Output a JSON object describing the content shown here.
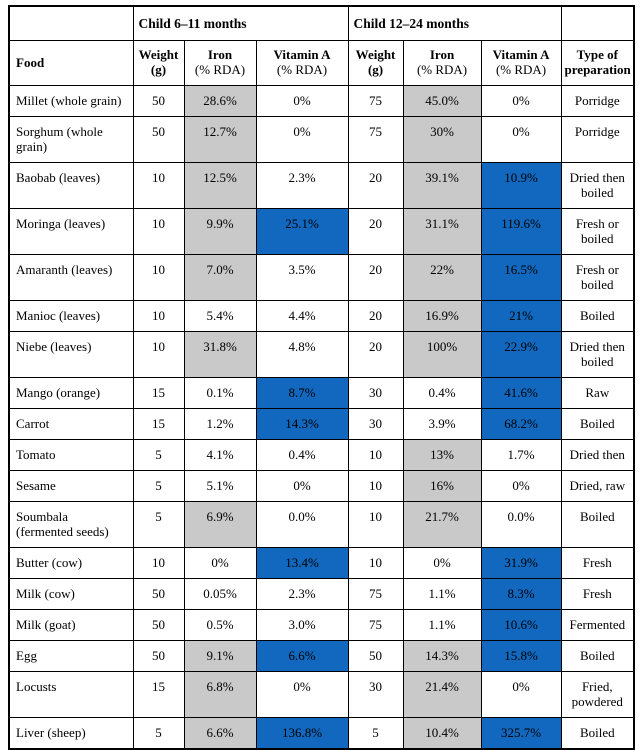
{
  "colors": {
    "highlight_gray": "#C9C9C9",
    "highlight_blue": "#1168BE",
    "border": "#000000",
    "text": "#000000"
  },
  "table": {
    "group_headers": {
      "blank_left": "",
      "child_6_11": "Child 6–11 months",
      "child_12_24": "Child 12–24 months",
      "blank_right": ""
    },
    "columns": [
      {
        "l1": "Food",
        "l2": ""
      },
      {
        "l1": "Weight",
        "l2": "(g)"
      },
      {
        "l1": "Iron",
        "l2": "(% RDA)"
      },
      {
        "l1": "Vitamin A",
        "l2": "(% RDA)"
      },
      {
        "l1": "Weight",
        "l2": "(g)"
      },
      {
        "l1": "Iron",
        "l2": "(% RDA)"
      },
      {
        "l1": "Vitamin A",
        "l2": "(% RDA)"
      },
      {
        "l1": "Type of",
        "l2": "preparation"
      }
    ],
    "rows": [
      {
        "food": "Millet (whole grain)",
        "cells": [
          {
            "text": "50",
            "bg": "none"
          },
          {
            "text": "28.6%",
            "bg": "gray"
          },
          {
            "text": "0%",
            "bg": "none"
          },
          {
            "text": "75",
            "bg": "none"
          },
          {
            "text": "45.0%",
            "bg": "gray"
          },
          {
            "text": "0%",
            "bg": "none"
          },
          {
            "text": "Porridge",
            "bg": "none"
          }
        ]
      },
      {
        "food": "Sorghum (whole grain)",
        "cells": [
          {
            "text": "50",
            "bg": "none"
          },
          {
            "text": "12.7%",
            "bg": "gray"
          },
          {
            "text": "0%",
            "bg": "none"
          },
          {
            "text": "75",
            "bg": "none"
          },
          {
            "text": "30%",
            "bg": "gray"
          },
          {
            "text": "0%",
            "bg": "none"
          },
          {
            "text": "Porridge",
            "bg": "none"
          }
        ]
      },
      {
        "food": "Baobab (leaves)",
        "cells": [
          {
            "text": "10",
            "bg": "none"
          },
          {
            "text": "12.5%",
            "bg": "gray"
          },
          {
            "text": "2.3%",
            "bg": "none"
          },
          {
            "text": "20",
            "bg": "none"
          },
          {
            "text": "39.1%",
            "bg": "gray"
          },
          {
            "text": "10.9%",
            "bg": "blue"
          },
          {
            "text": "Dried then boiled",
            "bg": "none"
          }
        ]
      },
      {
        "food": "Moringa (leaves)",
        "cells": [
          {
            "text": "10",
            "bg": "none"
          },
          {
            "text": "9.9%",
            "bg": "gray"
          },
          {
            "text": "25.1%",
            "bg": "blue"
          },
          {
            "text": "20",
            "bg": "none"
          },
          {
            "text": "31.1%",
            "bg": "gray"
          },
          {
            "text": "119.6%",
            "bg": "blue"
          },
          {
            "text": "Fresh or boiled",
            "bg": "none"
          }
        ]
      },
      {
        "food": "Amaranth (leaves)",
        "cells": [
          {
            "text": "10",
            "bg": "none"
          },
          {
            "text": "7.0%",
            "bg": "gray"
          },
          {
            "text": "3.5%",
            "bg": "none"
          },
          {
            "text": "20",
            "bg": "none"
          },
          {
            "text": "22%",
            "bg": "gray"
          },
          {
            "text": "16.5%",
            "bg": "blue"
          },
          {
            "text": "Fresh or boiled",
            "bg": "none"
          }
        ]
      },
      {
        "food": "Manioc (leaves)",
        "cells": [
          {
            "text": "10",
            "bg": "none"
          },
          {
            "text": "5.4%",
            "bg": "none"
          },
          {
            "text": "4.4%",
            "bg": "none"
          },
          {
            "text": "20",
            "bg": "none"
          },
          {
            "text": "16.9%",
            "bg": "gray"
          },
          {
            "text": "21%",
            "bg": "blue"
          },
          {
            "text": "Boiled",
            "bg": "none"
          }
        ]
      },
      {
        "food": "Niebe (leaves)",
        "cells": [
          {
            "text": "10",
            "bg": "none"
          },
          {
            "text": "31.8%",
            "bg": "gray"
          },
          {
            "text": "4.8%",
            "bg": "none"
          },
          {
            "text": "20",
            "bg": "none"
          },
          {
            "text": "100%",
            "bg": "gray"
          },
          {
            "text": "22.9%",
            "bg": "blue"
          },
          {
            "text": "Dried then boiled",
            "bg": "none"
          }
        ]
      },
      {
        "food": "Mango (orange)",
        "cells": [
          {
            "text": "15",
            "bg": "none"
          },
          {
            "text": "0.1%",
            "bg": "none"
          },
          {
            "text": "8.7%",
            "bg": "blue"
          },
          {
            "text": "30",
            "bg": "none"
          },
          {
            "text": "0.4%",
            "bg": "none"
          },
          {
            "text": "41.6%",
            "bg": "blue"
          },
          {
            "text": "Raw",
            "bg": "none"
          }
        ]
      },
      {
        "food": "Carrot",
        "cells": [
          {
            "text": "15",
            "bg": "none"
          },
          {
            "text": "1.2%",
            "bg": "none"
          },
          {
            "text": "14.3%",
            "bg": "blue"
          },
          {
            "text": "30",
            "bg": "none"
          },
          {
            "text": "3.9%",
            "bg": "none"
          },
          {
            "text": "68.2%",
            "bg": "blue"
          },
          {
            "text": "Boiled",
            "bg": "none"
          }
        ]
      },
      {
        "food": "Tomato",
        "cells": [
          {
            "text": "5",
            "bg": "none"
          },
          {
            "text": "4.1%",
            "bg": "none"
          },
          {
            "text": "0.4%",
            "bg": "none"
          },
          {
            "text": "10",
            "bg": "none"
          },
          {
            "text": "13%",
            "bg": "gray"
          },
          {
            "text": "1.7%",
            "bg": "none"
          },
          {
            "text": "Dried then",
            "bg": "none"
          }
        ]
      },
      {
        "food": "Sesame",
        "cells": [
          {
            "text": "5",
            "bg": "none"
          },
          {
            "text": "5.1%",
            "bg": "none"
          },
          {
            "text": "0%",
            "bg": "none"
          },
          {
            "text": "10",
            "bg": "none"
          },
          {
            "text": "16%",
            "bg": "gray"
          },
          {
            "text": "0%",
            "bg": "none"
          },
          {
            "text": "Dried, raw",
            "bg": "none"
          }
        ]
      },
      {
        "food": "Soumbala (fermented seeds)",
        "cells": [
          {
            "text": "5",
            "bg": "none"
          },
          {
            "text": "6.9%",
            "bg": "gray"
          },
          {
            "text": "0.0%",
            "bg": "none"
          },
          {
            "text": "10",
            "bg": "none"
          },
          {
            "text": "21.7%",
            "bg": "gray"
          },
          {
            "text": "0.0%",
            "bg": "none"
          },
          {
            "text": "Boiled",
            "bg": "none"
          }
        ]
      },
      {
        "food": "Butter (cow)",
        "cells": [
          {
            "text": "10",
            "bg": "none"
          },
          {
            "text": "0%",
            "bg": "none"
          },
          {
            "text": "13.4%",
            "bg": "blue"
          },
          {
            "text": "10",
            "bg": "none"
          },
          {
            "text": "0%",
            "bg": "none"
          },
          {
            "text": "31.9%",
            "bg": "blue"
          },
          {
            "text": "Fresh",
            "bg": "none"
          }
        ]
      },
      {
        "food": "Milk (cow)",
        "cells": [
          {
            "text": "50",
            "bg": "none"
          },
          {
            "text": "0.05%",
            "bg": "none"
          },
          {
            "text": "2.3%",
            "bg": "none"
          },
          {
            "text": "75",
            "bg": "none"
          },
          {
            "text": "1.1%",
            "bg": "none"
          },
          {
            "text": "8.3%",
            "bg": "blue"
          },
          {
            "text": "Fresh",
            "bg": "none"
          }
        ]
      },
      {
        "food": "Milk (goat)",
        "cells": [
          {
            "text": "50",
            "bg": "none"
          },
          {
            "text": "0.5%",
            "bg": "none"
          },
          {
            "text": "3.0%",
            "bg": "none"
          },
          {
            "text": "75",
            "bg": "none"
          },
          {
            "text": "1.1%",
            "bg": "none"
          },
          {
            "text": "10.6%",
            "bg": "blue"
          },
          {
            "text": "Fermented",
            "bg": "none"
          }
        ]
      },
      {
        "food": "Egg",
        "cells": [
          {
            "text": "50",
            "bg": "none"
          },
          {
            "text": "9.1%",
            "bg": "gray"
          },
          {
            "text": "6.6%",
            "bg": "blue"
          },
          {
            "text": "50",
            "bg": "none"
          },
          {
            "text": "14.3%",
            "bg": "gray"
          },
          {
            "text": "15.8%",
            "bg": "blue"
          },
          {
            "text": "Boiled",
            "bg": "none"
          }
        ]
      },
      {
        "food": "Locusts",
        "cells": [
          {
            "text": "15",
            "bg": "none"
          },
          {
            "text": "6.8%",
            "bg": "gray"
          },
          {
            "text": "0%",
            "bg": "none"
          },
          {
            "text": "30",
            "bg": "none"
          },
          {
            "text": "21.4%",
            "bg": "gray"
          },
          {
            "text": "0%",
            "bg": "none"
          },
          {
            "text": "Fried, powdered",
            "bg": "none"
          }
        ]
      },
      {
        "food": "Liver (sheep)",
        "cells": [
          {
            "text": "5",
            "bg": "none"
          },
          {
            "text": "6.6%",
            "bg": "gray"
          },
          {
            "text": "136.8%",
            "bg": "blue"
          },
          {
            "text": "5",
            "bg": "none"
          },
          {
            "text": "10.4%",
            "bg": "gray"
          },
          {
            "text": "325.7%",
            "bg": "blue"
          },
          {
            "text": "Boiled",
            "bg": "none"
          }
        ]
      }
    ]
  }
}
